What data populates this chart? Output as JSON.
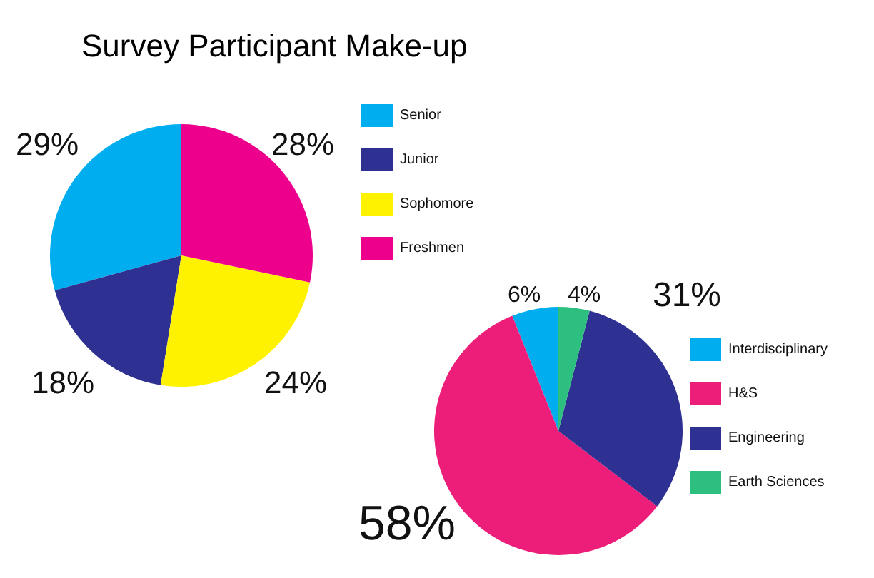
{
  "chart_data": [
    {
      "type": "pie",
      "title": "Survey Participant Make-up",
      "categories": [
        "Senior",
        "Junior",
        "Sophomore",
        "Freshmen"
      ],
      "values": [
        29,
        18,
        24,
        28
      ],
      "value_labels": [
        "29%",
        "18%",
        "24%",
        "28%"
      ],
      "colors": [
        "#00aeef",
        "#2e3192",
        "#fff200",
        "#ec008c"
      ],
      "legend": "top right"
    },
    {
      "type": "pie",
      "categories": [
        "Interdisciplinary",
        "H&S",
        "Engineering",
        "Earth Sciences"
      ],
      "values": [
        6,
        58,
        31,
        4
      ],
      "value_labels": [
        "6%",
        "58%",
        "31%",
        "4%"
      ],
      "colors": [
        "#00aeef",
        "#ed1e79",
        "#2e3192",
        "#2dbf7f"
      ],
      "legend": "top right"
    }
  ]
}
